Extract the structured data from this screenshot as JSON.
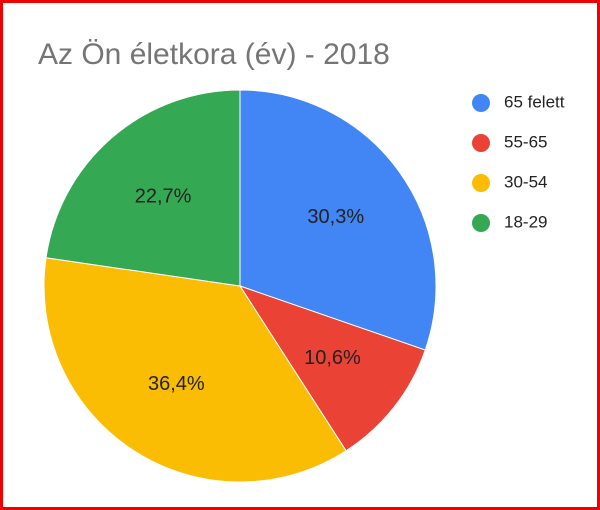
{
  "chart_data": {
    "type": "pie",
    "title": "Az Ön életkora (év) - 2018",
    "categories": [
      "65 felett",
      "55-65",
      "30-54",
      "18-29"
    ],
    "values": [
      30.3,
      10.6,
      36.4,
      22.7
    ],
    "value_labels": [
      "30,3%",
      "10,6%",
      "36,4%",
      "22,7%"
    ],
    "colors": [
      "#4285f4",
      "#ea4335",
      "#fbbc04",
      "#34a853"
    ],
    "legend": "right"
  }
}
